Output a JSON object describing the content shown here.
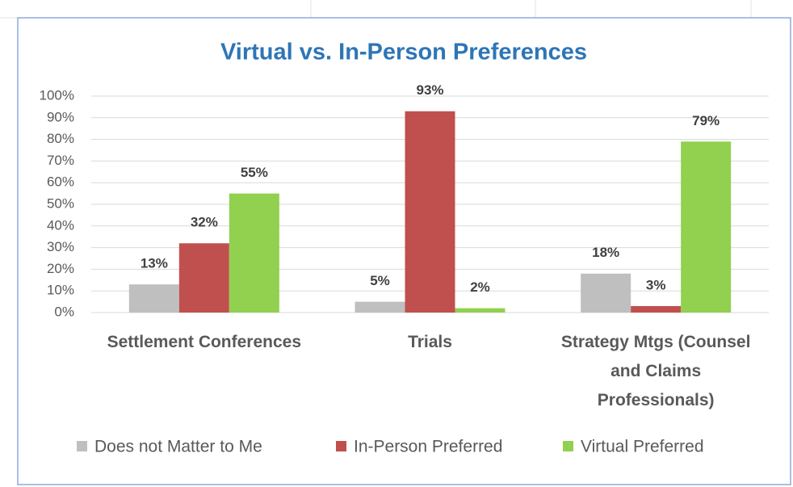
{
  "chart_data": {
    "type": "bar",
    "title": "Virtual vs. In-Person Preferences",
    "categories": [
      "Settlement Conferences",
      "Trials",
      "Strategy Mtgs (Counsel and Claims Professionals)"
    ],
    "series": [
      {
        "name": "Does not Matter to Me",
        "color": "#bfbfbf",
        "values": [
          13,
          5,
          18
        ],
        "value_labels": [
          "13%",
          "5%",
          "18%"
        ]
      },
      {
        "name": "In-Person Preferred",
        "color": "#c0504d",
        "values": [
          32,
          93,
          3
        ],
        "value_labels": [
          "32%",
          "93%",
          "3%"
        ]
      },
      {
        "name": "Virtual Preferred",
        "color": "#92d050",
        "values": [
          55,
          2,
          79
        ],
        "value_labels": [
          "55%",
          "2%",
          "79%"
        ]
      }
    ],
    "ylim": [
      0,
      100
    ],
    "yticks": [
      {
        "value": 0,
        "label": "0%"
      },
      {
        "value": 10,
        "label": "10%"
      },
      {
        "value": 20,
        "label": "20%"
      },
      {
        "value": 30,
        "label": "30%"
      },
      {
        "value": 40,
        "label": "40%"
      },
      {
        "value": 50,
        "label": "50%"
      },
      {
        "value": 60,
        "label": "60%"
      },
      {
        "value": 70,
        "label": "70%"
      },
      {
        "value": 80,
        "label": "80%"
      },
      {
        "value": 90,
        "label": "90%"
      },
      {
        "value": 100,
        "label": "100%"
      }
    ],
    "grid": true,
    "legend": "bottom"
  }
}
